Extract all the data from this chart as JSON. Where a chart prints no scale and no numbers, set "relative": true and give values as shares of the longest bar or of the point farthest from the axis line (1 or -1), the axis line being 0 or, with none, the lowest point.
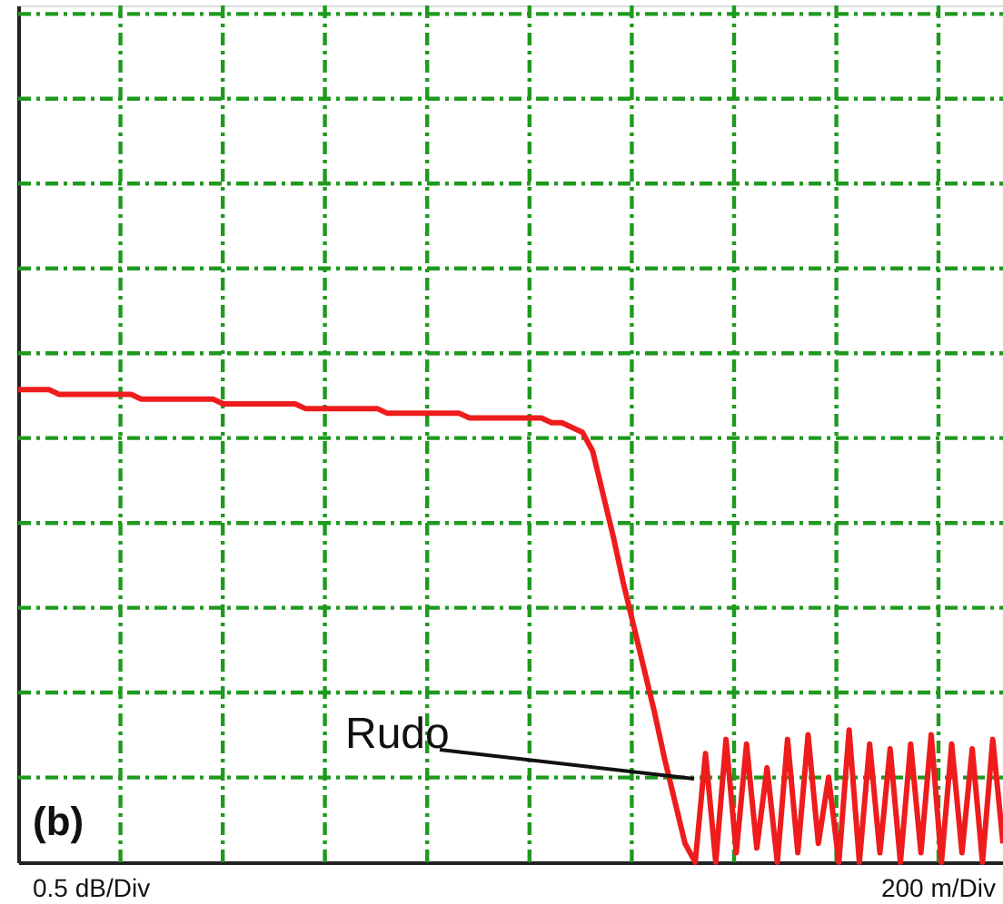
{
  "chart_data": {
    "type": "line",
    "relative": true,
    "grid": true,
    "categories": [
      null,
      null,
      null,
      null,
      null,
      null,
      null,
      null,
      null,
      null,
      null,
      null,
      null,
      null,
      null,
      null,
      null,
      null,
      null,
      null,
      null,
      null,
      null,
      null,
      null,
      null,
      null,
      null,
      null,
      null,
      null,
      null,
      null,
      null,
      null,
      null,
      null,
      null,
      null,
      null,
      null,
      null,
      null,
      null,
      null,
      null,
      null,
      null,
      null,
      null,
      null,
      null,
      null,
      null,
      null,
      null,
      null,
      null,
      null,
      null,
      null,
      null,
      null,
      null,
      null,
      null,
      null,
      null,
      null,
      null,
      null,
      null,
      null,
      null,
      null,
      null,
      null,
      null,
      null,
      null,
      null,
      null,
      null,
      null,
      null,
      null,
      null,
      null,
      null,
      null,
      null,
      null,
      null,
      null,
      null,
      null,
      null
    ],
    "series": [
      {
        "color": "#ee1c1c",
        "values": [
          1.0,
          1.0,
          1.0,
          1.0,
          0.99,
          0.99,
          0.99,
          0.99,
          0.99,
          0.99,
          0.99,
          0.99,
          0.98,
          0.98,
          0.98,
          0.98,
          0.98,
          0.98,
          0.98,
          0.98,
          0.97,
          0.97,
          0.97,
          0.97,
          0.97,
          0.97,
          0.97,
          0.97,
          0.96,
          0.96,
          0.96,
          0.96,
          0.96,
          0.96,
          0.96,
          0.96,
          0.95,
          0.95,
          0.95,
          0.95,
          0.95,
          0.95,
          0.95,
          0.95,
          0.94,
          0.94,
          0.94,
          0.94,
          0.94,
          0.94,
          0.94,
          0.94,
          0.93,
          0.93,
          0.92,
          0.91,
          0.87,
          0.78,
          0.69,
          0.59,
          0.5,
          0.41,
          0.32,
          0.22,
          0.13,
          0.04,
          0,
          0.23,
          0,
          0.26,
          0.02,
          0.25,
          0.03,
          0.2,
          0,
          0.26,
          0.02,
          0.27,
          0.04,
          0.18,
          0,
          0.28,
          0,
          0.25,
          0.02,
          0.24,
          0,
          0.25,
          0.02,
          0.27,
          0,
          0.25,
          0.02,
          0.24,
          0,
          0.26,
          0.04
        ]
      }
    ],
    "annotations": [
      "Rudo",
      "(b)",
      "0.5 dB/Div",
      "200 m/Div"
    ]
  }
}
